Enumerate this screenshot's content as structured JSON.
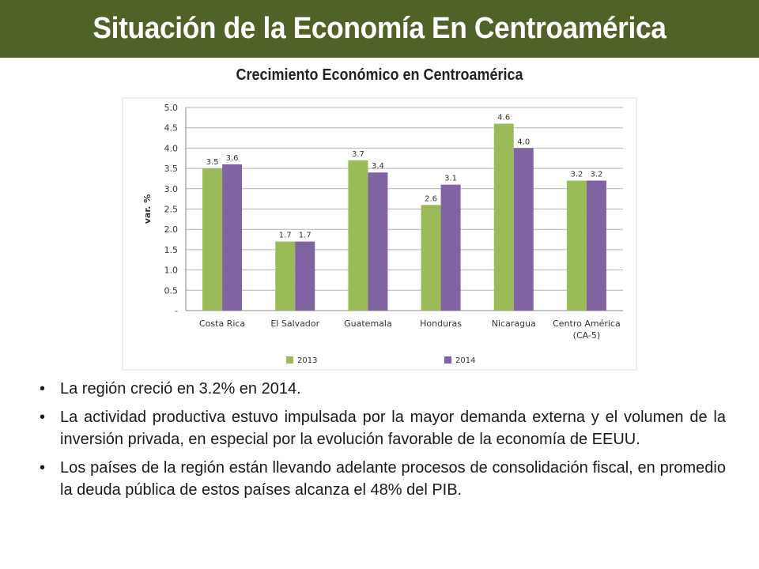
{
  "slide": {
    "title": "Situación de la Economía En Centroamérica",
    "colors": {
      "title_bar": "#4f6228",
      "series_2013": "#9bbb59",
      "series_2014": "#8064a2"
    }
  },
  "chart_data": {
    "type": "bar",
    "title": "Crecimiento Económico en Centroamérica",
    "ylabel": "var. %",
    "xlabel": "",
    "ylim": [
      0,
      5.0
    ],
    "y_ticks": [
      "-",
      "0.5",
      "1.0",
      "1.5",
      "2.0",
      "2.5",
      "3.0",
      "3.5",
      "4.0",
      "4.5",
      "5.0"
    ],
    "categories": [
      "Costa Rica",
      "El Salvador",
      "Guatemala",
      "Honduras",
      "Nicaragua",
      "Centro América (CA-5)"
    ],
    "series": [
      {
        "name": "2013",
        "values": [
          3.5,
          1.7,
          3.7,
          2.6,
          4.6,
          3.2
        ],
        "labels": [
          "3.5",
          "1.7",
          "3.7",
          "2.6",
          "4.6",
          "3.2"
        ]
      },
      {
        "name": "2014",
        "values": [
          3.6,
          1.7,
          3.4,
          3.1,
          4.0,
          3.2
        ],
        "labels": [
          "3.6",
          "1.7",
          "3.4",
          "3.1",
          "4.0",
          "3.2"
        ]
      }
    ],
    "grid": true,
    "legend_position": "bottom"
  },
  "bullets": [
    "La región creció en 3.2% en 2014.",
    "La actividad productiva estuvo impulsada por la mayor demanda externa y el volumen de la inversión privada, en especial por la evolución favorable de la economía de EEUU.",
    "Los países de la región están llevando adelante procesos de consolidación fiscal, en promedio la deuda pública de estos países alcanza el 48% del PIB."
  ]
}
